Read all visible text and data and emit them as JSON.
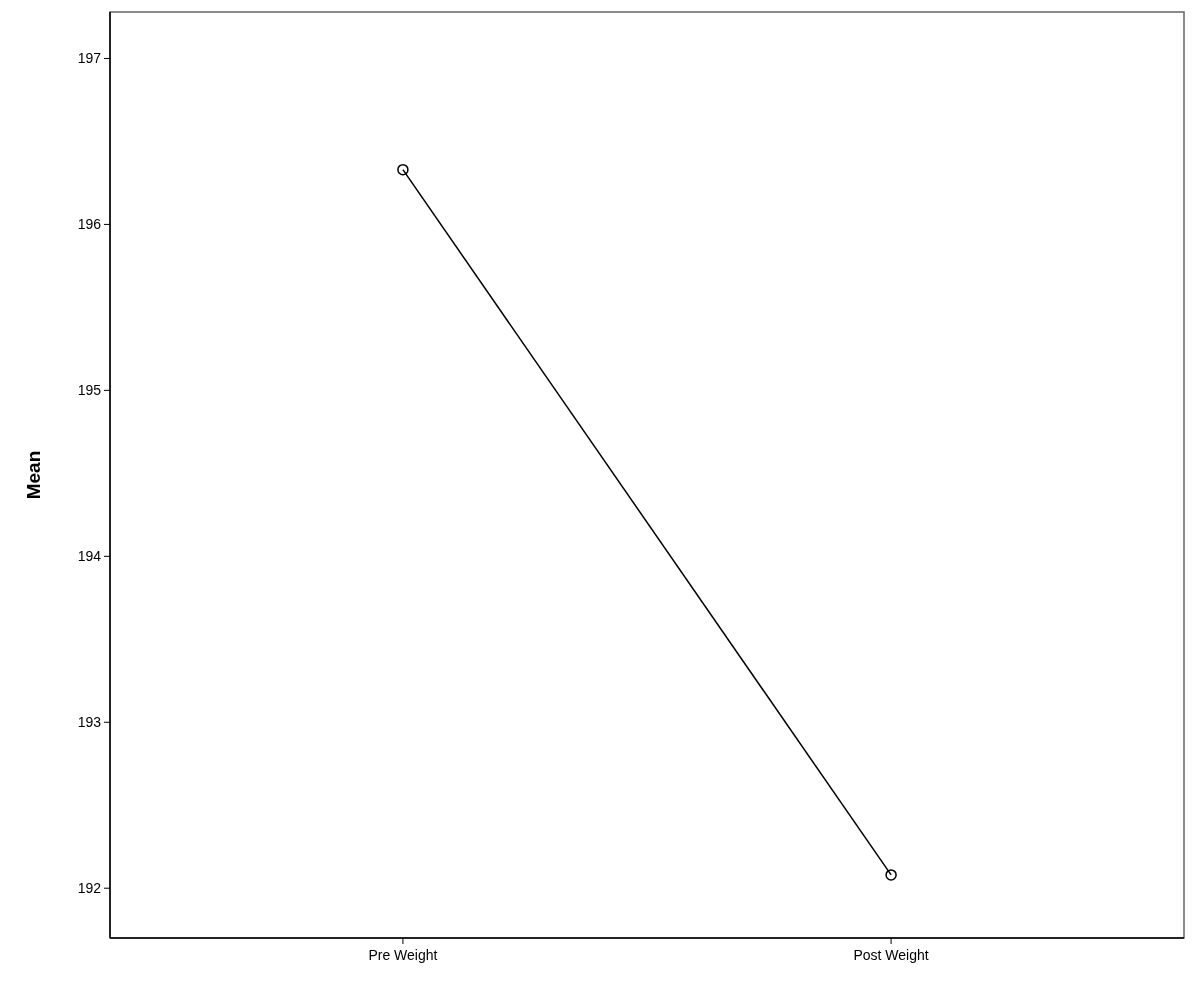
{
  "chart_data": {
    "type": "line",
    "ylabel": "Mean",
    "categories": [
      "Pre Weight",
      "Post Weight"
    ],
    "series": [
      {
        "color": "#000000",
        "values": [
          196.33,
          192.08
        ]
      }
    ],
    "ylim": [
      191.7,
      197.28
    ],
    "yticks": [
      192,
      193,
      194,
      195,
      196,
      197
    ],
    "marker": "circle",
    "line_style": "solid",
    "grid": false
  }
}
